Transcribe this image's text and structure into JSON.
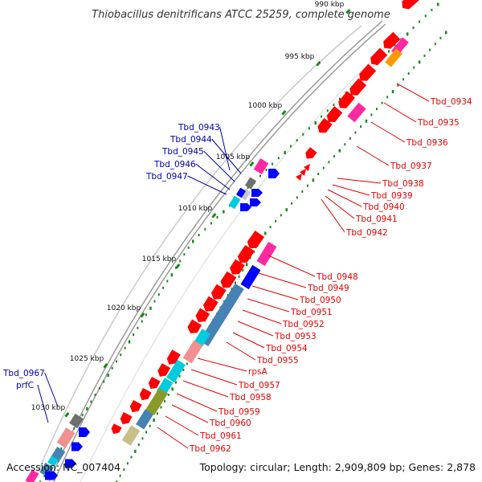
{
  "title": "Thiobacillus denitrificans ATCC 25259, complete genome",
  "footer": {
    "accession": "Accession: NC_007404",
    "topology": "Topology: circular; Length: 2,909,809 bp; Genes: 2,878"
  },
  "kbp_ticks": [
    "990 kbp",
    "995 kbp",
    "1000 kbp",
    "1005 kbp",
    "1010 kbp",
    "1015 kbp",
    "1020 kbp",
    "1025 kbp",
    "1030 kbp"
  ],
  "forward_labels": [
    "Tbd_0943",
    "Tbd_0944",
    "Tbd_0945",
    "Tbd_0946",
    "Tbd_0947",
    "Tbd_0967",
    "prfC"
  ],
  "reverse_labels": [
    "Tbd_0934",
    "Tbd_0935",
    "Tbd_0936",
    "Tbd_0937",
    "Tbd_0938",
    "Tbd_0939",
    "Tbd_0940",
    "Tbd_0941",
    "Tbd_0942",
    "Tbd_0948",
    "Tbd_0949",
    "Tbd_0950",
    "Tbd_0951",
    "Tbd_0952",
    "Tbd_0953",
    "Tbd_0954",
    "Tbd_0955",
    "rpsA",
    "Tbd_0957",
    "Tbd_0958",
    "Tbd_0959",
    "Tbd_0960",
    "Tbd_0961",
    "Tbd_0962"
  ],
  "colors": {
    "reverse_cds": "#ff0000",
    "forward_cds": "#0000ff",
    "label_reverse": "#e60000",
    "label_forward": "#0000aa",
    "magenta": "#ff2aa0",
    "orange": "#ff9900",
    "steel_blue": "#4682b4",
    "cyan": "#00ccdd",
    "olive": "#8a9a2a",
    "khaki": "#c8c088",
    "salmon": "#f09090",
    "grey": "#6e6e6e",
    "light_grey": "#c8c8c8",
    "tick_green": "#1a8a1a"
  }
}
